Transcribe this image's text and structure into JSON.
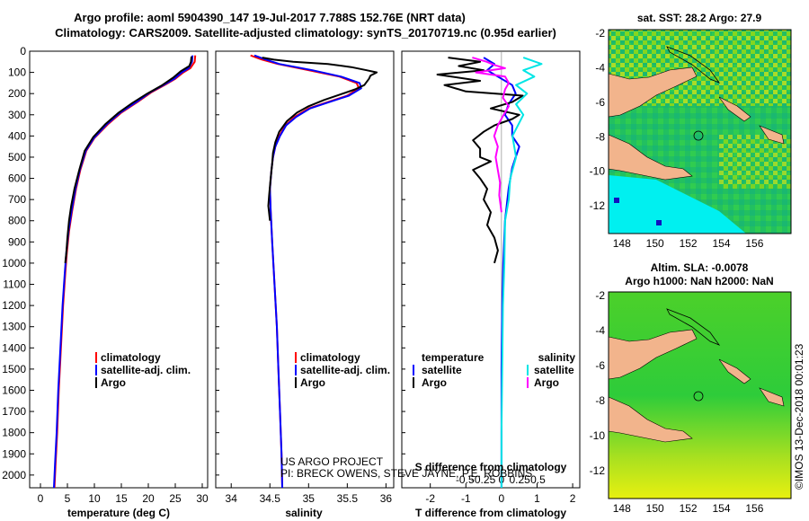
{
  "title_line1": "Argo profile: aoml 5904390_147 19-Jul-2017 7.788S 152.76E (NRT data)",
  "title_line2": "Climatology: CARS2009. Satellite-adjusted climatology: synTS_20170719.nc (0.95d earlier)",
  "credit_line1": "US ARGO PROJECT",
  "credit_line2": "PI: BRECK OWENS, STEVE JAYNE, P.E. ROBBINS",
  "imos_stamp": "©IMOS 13-Dec-2018 00:01:23",
  "colors": {
    "climatology": "#ff0000",
    "satellite": "#0000ff",
    "argo": "#000000",
    "sat_salinity": "#00e5e5",
    "argo_salinity": "#ff00ff",
    "land": "#f2b48c"
  },
  "chart_data": [
    {
      "id": "temperature",
      "type": "line",
      "xlabel": "temperature (deg C)",
      "xlim": [
        -2,
        31
      ],
      "xticks": [
        0,
        5,
        10,
        15,
        20,
        25,
        30
      ],
      "ylim": [
        2060,
        0
      ],
      "yticks": [
        0,
        100,
        200,
        300,
        400,
        500,
        600,
        700,
        800,
        900,
        1000,
        1100,
        1200,
        1300,
        1400,
        1500,
        1600,
        1700,
        1800,
        1900,
        2000
      ],
      "legend": [
        "climatology",
        "satellite-adj. clim.",
        "Argo"
      ],
      "series": [
        {
          "name": "climatology",
          "color": "#ff0000",
          "points": [
            [
              28.7,
              20
            ],
            [
              28.6,
              50
            ],
            [
              27.8,
              80
            ],
            [
              26.5,
              100
            ],
            [
              25.0,
              130
            ],
            [
              23.0,
              160
            ],
            [
              20.5,
              195
            ],
            [
              18.0,
              240
            ],
            [
              15.0,
              290
            ],
            [
              12.5,
              345
            ],
            [
              10.0,
              410
            ],
            [
              8.5,
              470
            ],
            [
              7.4,
              560
            ],
            [
              6.6,
              650
            ],
            [
              5.9,
              750
            ],
            [
              5.3,
              850
            ],
            [
              4.9,
              950
            ],
            [
              4.6,
              1050
            ],
            [
              4.2,
              1200
            ],
            [
              3.8,
              1400
            ],
            [
              3.4,
              1600
            ],
            [
              3.1,
              1800
            ],
            [
              2.8,
              1950
            ],
            [
              2.6,
              2060
            ]
          ]
        },
        {
          "name": "satellite-adj. clim.",
          "color": "#0000ff",
          "points": [
            [
              28.2,
              20
            ],
            [
              28.1,
              50
            ],
            [
              27.5,
              80
            ],
            [
              26.2,
              100
            ],
            [
              24.8,
              130
            ],
            [
              22.8,
              160
            ],
            [
              20.3,
              195
            ],
            [
              17.8,
              240
            ],
            [
              14.8,
              290
            ],
            [
              12.3,
              345
            ],
            [
              9.9,
              410
            ],
            [
              8.4,
              470
            ],
            [
              7.3,
              560
            ],
            [
              6.5,
              650
            ],
            [
              5.8,
              750
            ],
            [
              5.2,
              850
            ],
            [
              4.8,
              950
            ],
            [
              4.5,
              1050
            ],
            [
              4.1,
              1200
            ],
            [
              3.7,
              1400
            ],
            [
              3.3,
              1600
            ],
            [
              3.0,
              1800
            ],
            [
              2.7,
              1950
            ],
            [
              2.5,
              2060
            ]
          ]
        },
        {
          "name": "Argo",
          "color": "#000000",
          "points": [
            [
              28.0,
              25
            ],
            [
              27.9,
              50
            ],
            [
              27.6,
              70
            ],
            [
              26.0,
              95
            ],
            [
              24.6,
              125
            ],
            [
              22.6,
              160
            ],
            [
              19.8,
              200
            ],
            [
              17.0,
              245
            ],
            [
              14.5,
              290
            ],
            [
              12.0,
              345
            ],
            [
              9.8,
              405
            ],
            [
              8.2,
              470
            ],
            [
              7.2,
              560
            ],
            [
              6.3,
              650
            ],
            [
              5.7,
              730
            ],
            [
              5.3,
              800
            ],
            [
              5.0,
              880
            ],
            [
              4.8,
              950
            ],
            [
              4.6,
              1000
            ]
          ]
        }
      ]
    },
    {
      "id": "salinity",
      "type": "line",
      "xlabel": "salinity",
      "xlim": [
        33.8,
        36.1
      ],
      "xticks": [
        34,
        34.5,
        35,
        35.5,
        36
      ],
      "xticklabels": [
        "34",
        "34.5",
        "35",
        "35.5",
        "36"
      ],
      "ylim": [
        2060,
        0
      ],
      "legend": [
        "climatology",
        "satellite-adj. clim.",
        "Argo"
      ],
      "series": [
        {
          "name": "climatology",
          "color": "#ff0000",
          "points": [
            [
              34.25,
              20
            ],
            [
              34.4,
              40
            ],
            [
              34.6,
              60
            ],
            [
              35.0,
              90
            ],
            [
              35.4,
              120
            ],
            [
              35.62,
              150
            ],
            [
              35.65,
              175
            ],
            [
              35.5,
              210
            ],
            [
              35.25,
              240
            ],
            [
              35.0,
              270
            ],
            [
              34.82,
              310
            ],
            [
              34.7,
              350
            ],
            [
              34.62,
              400
            ],
            [
              34.57,
              450
            ],
            [
              34.54,
              500
            ],
            [
              34.52,
              560
            ],
            [
              34.5,
              650
            ],
            [
              34.51,
              750
            ],
            [
              34.53,
              900
            ],
            [
              34.56,
              1100
            ],
            [
              34.59,
              1300
            ],
            [
              34.61,
              1500
            ],
            [
              34.63,
              1700
            ],
            [
              34.65,
              1900
            ],
            [
              34.66,
              2060
            ]
          ]
        },
        {
          "name": "satellite-adj. clim.",
          "color": "#0000ff",
          "points": [
            [
              34.3,
              20
            ],
            [
              34.45,
              40
            ],
            [
              34.62,
              60
            ],
            [
              35.05,
              90
            ],
            [
              35.42,
              120
            ],
            [
              35.66,
              150
            ],
            [
              35.68,
              175
            ],
            [
              35.52,
              210
            ],
            [
              35.27,
              240
            ],
            [
              35.02,
              270
            ],
            [
              34.84,
              310
            ],
            [
              34.71,
              350
            ],
            [
              34.63,
              400
            ],
            [
              34.57,
              450
            ],
            [
              34.54,
              500
            ],
            [
              34.52,
              560
            ],
            [
              34.5,
              650
            ],
            [
              34.51,
              750
            ],
            [
              34.53,
              900
            ],
            [
              34.56,
              1100
            ],
            [
              34.59,
              1300
            ],
            [
              34.61,
              1500
            ],
            [
              34.63,
              1700
            ],
            [
              34.65,
              1900
            ],
            [
              34.66,
              2060
            ]
          ]
        },
        {
          "name": "Argo",
          "color": "#000000",
          "points": [
            [
              34.4,
              30
            ],
            [
              34.55,
              40
            ],
            [
              34.8,
              50
            ],
            [
              35.25,
              60
            ],
            [
              35.55,
              75
            ],
            [
              35.75,
              90
            ],
            [
              35.88,
              100
            ],
            [
              35.8,
              115
            ],
            [
              35.78,
              130
            ],
            [
              35.72,
              160
            ],
            [
              35.6,
              180
            ],
            [
              35.4,
              205
            ],
            [
              35.2,
              230
            ],
            [
              35.0,
              260
            ],
            [
              34.85,
              290
            ],
            [
              34.72,
              330
            ],
            [
              34.62,
              380
            ],
            [
              34.57,
              430
            ],
            [
              34.54,
              480
            ],
            [
              34.53,
              530
            ],
            [
              34.51,
              600
            ],
            [
              34.49,
              680
            ],
            [
              34.48,
              730
            ],
            [
              34.5,
              800
            ]
          ]
        }
      ]
    },
    {
      "id": "differences",
      "type": "line",
      "xlabel": "T difference from climatology",
      "xlabel_top": "S difference from climatology",
      "xlim": [
        -2.8,
        2.2
      ],
      "xticks": [
        -2,
        -1,
        0,
        1,
        2
      ],
      "sticks": [
        -0.5,
        -0.25,
        0,
        0.25,
        0.5
      ],
      "sticklabels": [
        "-0.5",
        "-0.25",
        "0",
        "0.25",
        "0.5"
      ],
      "ylim": [
        2060,
        0
      ],
      "legend_left_title": "temperature",
      "legend_right_title": "salinity",
      "legend": [
        "satellite",
        "Argo"
      ],
      "series": [
        {
          "name": "temperature satellite",
          "color": "#0000ff",
          "points": [
            [
              -0.5,
              30
            ],
            [
              -0.2,
              60
            ],
            [
              -0.4,
              90
            ],
            [
              -0.1,
              120
            ],
            [
              0.3,
              160
            ],
            [
              0.4,
              200
            ],
            [
              0.2,
              250
            ],
            [
              0.1,
              300
            ],
            [
              0.3,
              350
            ],
            [
              0.3,
              400
            ],
            [
              0.5,
              450
            ],
            [
              0.4,
              500
            ],
            [
              0.3,
              550
            ],
            [
              0.2,
              650
            ],
            [
              0.1,
              800
            ],
            [
              0.05,
              1000
            ],
            [
              0.02,
              1200
            ],
            [
              0.0,
              1500
            ],
            [
              0.0,
              2060
            ]
          ]
        },
        {
          "name": "temperature Argo",
          "color": "#000000",
          "points": [
            [
              -1.5,
              30
            ],
            [
              -0.6,
              50
            ],
            [
              -1.2,
              70
            ],
            [
              -0.5,
              90
            ],
            [
              -1.8,
              110
            ],
            [
              -0.6,
              140
            ],
            [
              -1.6,
              160
            ],
            [
              -1.0,
              190
            ],
            [
              0.6,
              210
            ],
            [
              0.3,
              240
            ],
            [
              -0.3,
              270
            ],
            [
              0.5,
              300
            ],
            [
              0.3,
              320
            ],
            [
              -0.2,
              350
            ],
            [
              -0.5,
              380
            ],
            [
              -0.8,
              420
            ],
            [
              -0.6,
              460
            ],
            [
              -0.6,
              500
            ],
            [
              -0.3,
              520
            ],
            [
              -0.8,
              560
            ],
            [
              -0.6,
              600
            ],
            [
              -0.4,
              650
            ],
            [
              -0.5,
              700
            ],
            [
              -0.3,
              760
            ],
            [
              -0.4,
              820
            ],
            [
              -0.2,
              880
            ],
            [
              -0.1,
              940
            ],
            [
              -0.2,
              1000
            ]
          ]
        },
        {
          "name": "salinity satellite",
          "color": "#00e5e5",
          "points": [
            [
              0.3,
              30
            ],
            [
              0.55,
              60
            ],
            [
              0.3,
              90
            ],
            [
              0.45,
              120
            ],
            [
              0.2,
              160
            ],
            [
              0.35,
              200
            ],
            [
              0.2,
              250
            ],
            [
              0.3,
              300
            ],
            [
              0.15,
              400
            ],
            [
              0.2,
              500
            ],
            [
              0.12,
              600
            ],
            [
              0.1,
              700
            ],
            [
              0.05,
              800
            ],
            [
              0.04,
              1000
            ],
            [
              0.02,
              1200
            ],
            [
              0.01,
              1500
            ],
            [
              0.0,
              1800
            ],
            [
              0.0,
              2060
            ]
          ]
        },
        {
          "name": "salinity Argo",
          "color": "#ff00ff",
          "points": [
            [
              -0.4,
              30
            ],
            [
              -0.2,
              50
            ],
            [
              -0.1,
              65
            ],
            [
              0.05,
              80
            ],
            [
              -0.35,
              100
            ],
            [
              0.05,
              120
            ],
            [
              0.1,
              150
            ],
            [
              0.05,
              180
            ],
            [
              0.02,
              220
            ],
            [
              0.1,
              260
            ],
            [
              0.03,
              300
            ],
            [
              -0.05,
              350
            ],
            [
              -0.1,
              400
            ],
            [
              -0.05,
              450
            ],
            [
              -0.08,
              500
            ],
            [
              -0.05,
              560
            ],
            [
              -0.02,
              620
            ],
            [
              -0.03,
              680
            ],
            [
              0.0,
              760
            ]
          ]
        }
      ]
    },
    {
      "id": "sst_map",
      "type": "heatmap",
      "title": "sat. SST: 28.2 Argo: 27.9",
      "xticks": [
        "148",
        "150",
        "152",
        "154",
        "156"
      ],
      "yticks": [
        "-2",
        "-4",
        "-6",
        "-8",
        "-10",
        "-12"
      ],
      "xlim": [
        147.2,
        158.2
      ],
      "ylim": [
        -13.6,
        -1.8
      ],
      "profile_location": [
        152.76,
        -7.788
      ]
    },
    {
      "id": "sla_map",
      "type": "heatmap",
      "title": "Altim. SLA: -0.0078",
      "subtitle": "Argo h1000: NaN h2000: NaN",
      "xticks": [
        "148",
        "150",
        "152",
        "154",
        "156"
      ],
      "yticks": [
        "-2",
        "-4",
        "-6",
        "-8",
        "-10",
        "-12"
      ],
      "xlim": [
        147.2,
        158.2
      ],
      "ylim": [
        -13.6,
        -1.8
      ],
      "profile_location": [
        152.76,
        -7.788
      ]
    }
  ]
}
